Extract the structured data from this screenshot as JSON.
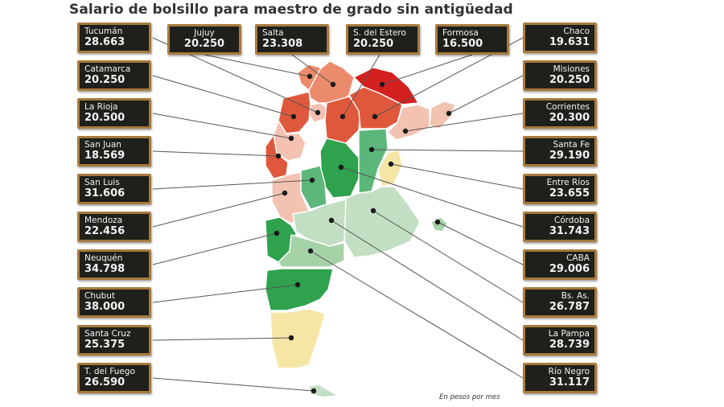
{
  "title": "Salario de bolsillo para maestro de grado sin antigüedad",
  "note": "En pesos por mes",
  "colors": {
    "dark_red": "#d4201e",
    "red": "#e0583c",
    "salmon": "#ec8a6c",
    "light_pink": "#f3c2b0",
    "pale_yellow": "#f5e6a6",
    "light_green": "#c3dfc3",
    "mint": "#a6d2a8",
    "mid_green": "#5bb77a",
    "dark_green": "#2ea24d",
    "board": "#1f1f1b",
    "frame": "#a77a3c"
  },
  "provinces": [
    {
      "name": "Tucumán",
      "value": "28.663"
    },
    {
      "name": "Jujuy",
      "value": "20.250"
    },
    {
      "name": "Salta",
      "value": "23.308"
    },
    {
      "name": "S. del Estero",
      "value": "20.250"
    },
    {
      "name": "Formosa",
      "value": "16.500"
    },
    {
      "name": "Chaco",
      "value": "19.631"
    },
    {
      "name": "Catamarca",
      "value": "20.250"
    },
    {
      "name": "Misiones",
      "value": "20.250"
    },
    {
      "name": "La Rioja",
      "value": "20.500"
    },
    {
      "name": "Corrientes",
      "value": "20.300"
    },
    {
      "name": "San Juan",
      "value": "18.569"
    },
    {
      "name": "Santa Fe",
      "value": "29.190"
    },
    {
      "name": "San Luis",
      "value": "31.606"
    },
    {
      "name": "Entre Ríos",
      "value": "23.655"
    },
    {
      "name": "Mendoza",
      "value": "22.456"
    },
    {
      "name": "Córdoba",
      "value": "31.743"
    },
    {
      "name": "Neuquén",
      "value": "34.798"
    },
    {
      "name": "CABA",
      "value": "29.006"
    },
    {
      "name": "Chubut",
      "value": "38.000"
    },
    {
      "name": "Bs. As.",
      "value": "26.787"
    },
    {
      "name": "Santa Cruz",
      "value": "25.375"
    },
    {
      "name": "La Pampa",
      "value": "28.739"
    },
    {
      "name": "T. del Fuego",
      "value": "26.590"
    },
    {
      "name": "Río Negro",
      "value": "31.117"
    }
  ]
}
